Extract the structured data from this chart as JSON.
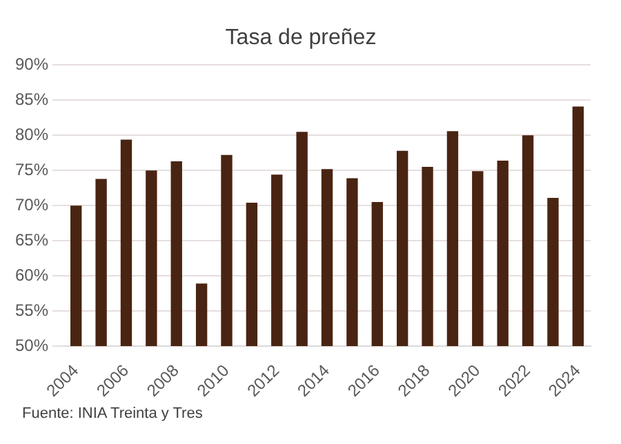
{
  "chart_data": {
    "type": "bar",
    "title": "Tasa de preñez",
    "categories": [
      "2004",
      null,
      "2006",
      null,
      "2008",
      null,
      "2010",
      null,
      "2012",
      null,
      "2014",
      null,
      "2016",
      null,
      "2018",
      null,
      "2020",
      null,
      "2022",
      null,
      "2024"
    ],
    "values": [
      70,
      73.8,
      79.4,
      75,
      76.3,
      58.9,
      77.2,
      70.4,
      74.4,
      80.5,
      75.2,
      73.9,
      70.5,
      77.8,
      75.5,
      80.6,
      74.9,
      76.4,
      80,
      71.1,
      84.1
    ],
    "color": "#4a2412",
    "ylim": [
      50,
      90
    ],
    "yticks": [
      {
        "value": 50,
        "label": "50%"
      },
      {
        "value": 55,
        "label": "55%"
      },
      {
        "value": 60,
        "label": "60%"
      },
      {
        "value": 65,
        "label": "65%"
      },
      {
        "value": 70,
        "label": "70%"
      },
      {
        "value": 75,
        "label": "75%"
      },
      {
        "value": 80,
        "label": "80%"
      },
      {
        "value": 85,
        "label": "85%"
      },
      {
        "value": 90,
        "label": "90%"
      }
    ],
    "grid": "y",
    "annotations": [
      "Fuente: INIA Treinta y Tres"
    ]
  }
}
